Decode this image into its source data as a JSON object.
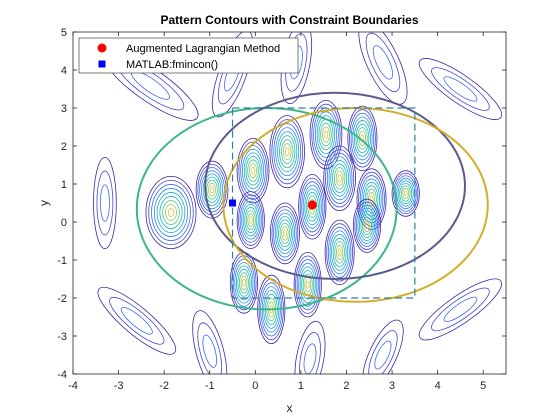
{
  "chart_data": {
    "type": "contour",
    "title": "Pattern Contours with Constraint Boundaries",
    "xlabel": "x",
    "ylabel": "y",
    "xlim": [
      -4,
      5.5
    ],
    "ylim": [
      -4,
      5
    ],
    "xticks": [
      -4,
      -3,
      -2,
      -1,
      0,
      1,
      2,
      3,
      4,
      5
    ],
    "yticks": [
      -4,
      -3,
      -2,
      -1,
      0,
      1,
      2,
      3,
      4,
      5
    ],
    "grid": false,
    "legend_location": "top-left",
    "contour_field": {
      "description_levels": 9,
      "colormap": "parula",
      "lobe_color_peak": "#e6c219",
      "lobe_color_low": "#3d3ad6",
      "lobes": [
        {
          "cx": -1.85,
          "cy": 0.25,
          "rx": 0.55,
          "ry": 0.95,
          "angle": 0
        },
        {
          "cx": -0.95,
          "cy": 0.85,
          "rx": 0.35,
          "ry": 0.75,
          "angle": 0
        },
        {
          "cx": -0.05,
          "cy": 1.35,
          "rx": 0.35,
          "ry": 0.85,
          "angle": 0
        },
        {
          "cx": 0.7,
          "cy": 1.85,
          "rx": 0.38,
          "ry": 0.95,
          "angle": 0
        },
        {
          "cx": 1.55,
          "cy": 2.3,
          "rx": 0.35,
          "ry": 0.9,
          "angle": 0
        },
        {
          "cx": 2.35,
          "cy": 2.2,
          "rx": 0.32,
          "ry": 0.85,
          "angle": 0
        },
        {
          "cx": 0.65,
          "cy": -0.3,
          "rx": 0.32,
          "ry": 0.8,
          "angle": 0
        },
        {
          "cx": 1.25,
          "cy": 0.4,
          "rx": 0.3,
          "ry": 0.85,
          "angle": 0
        },
        {
          "cx": 1.85,
          "cy": 1.15,
          "rx": 0.35,
          "ry": 0.85,
          "angle": 0
        },
        {
          "cx": 2.55,
          "cy": 0.6,
          "rx": 0.32,
          "ry": 0.8,
          "angle": 0
        },
        {
          "cx": 3.3,
          "cy": 0.75,
          "rx": 0.3,
          "ry": 0.6,
          "angle": 0
        },
        {
          "cx": 1.85,
          "cy": -0.8,
          "rx": 0.32,
          "ry": 0.85,
          "angle": 0
        },
        {
          "cx": 2.45,
          "cy": -0.1,
          "rx": 0.3,
          "ry": 0.7,
          "angle": 0
        },
        {
          "cx": 1.15,
          "cy": -1.65,
          "rx": 0.3,
          "ry": 0.85,
          "angle": 0
        },
        {
          "cx": 0.35,
          "cy": -2.3,
          "rx": 0.3,
          "ry": 0.9,
          "angle": 0
        },
        {
          "cx": -0.25,
          "cy": -1.6,
          "rx": 0.3,
          "ry": 0.8,
          "angle": 0
        },
        {
          "cx": -0.1,
          "cy": 0.05,
          "rx": 0.3,
          "ry": 0.75,
          "angle": 0
        }
      ],
      "outer_streaks": [
        {
          "cx": -2.3,
          "cy": 3.6,
          "rx": 0.35,
          "ry": 1.5,
          "angle": -55
        },
        {
          "cx": -0.5,
          "cy": 3.9,
          "rx": 0.3,
          "ry": 1.2,
          "angle": 20
        },
        {
          "cx": 0.9,
          "cy": 4.2,
          "rx": 0.3,
          "ry": 1.1,
          "angle": 10
        },
        {
          "cx": 2.8,
          "cy": 4.2,
          "rx": 0.35,
          "ry": 1.2,
          "angle": -25
        },
        {
          "cx": 4.5,
          "cy": 3.5,
          "rx": 0.3,
          "ry": 1.3,
          "angle": -55
        },
        {
          "cx": 4.5,
          "cy": -2.3,
          "rx": 0.3,
          "ry": 1.3,
          "angle": 55
        },
        {
          "cx": 2.8,
          "cy": -3.5,
          "rx": 0.3,
          "ry": 1.0,
          "angle": 25
        },
        {
          "cx": 1.2,
          "cy": -3.6,
          "rx": 0.3,
          "ry": 1.0,
          "angle": 10
        },
        {
          "cx": -1.0,
          "cy": -3.4,
          "rx": 0.3,
          "ry": 1.1,
          "angle": -15
        },
        {
          "cx": -2.6,
          "cy": -2.6,
          "rx": 0.3,
          "ry": 1.3,
          "angle": -50
        },
        {
          "cx": -3.3,
          "cy": 0.5,
          "rx": 0.25,
          "ry": 1.2,
          "angle": 0
        }
      ]
    },
    "constraints": [
      {
        "name": "ellipse-green",
        "kind": "ellipse",
        "cx": 0.25,
        "cy": 0.35,
        "rx": 2.85,
        "ry": 2.65,
        "color": "#3cb68a"
      },
      {
        "name": "ellipse-purple",
        "kind": "ellipse",
        "cx": 1.75,
        "cy": 0.95,
        "rx": 2.85,
        "ry": 2.45,
        "color": "#5d5a8c"
      },
      {
        "name": "ellipse-gold",
        "kind": "ellipse",
        "cx": 2.2,
        "cy": 0.45,
        "rx": 2.9,
        "ry": 2.55,
        "color": "#d2ae2a"
      },
      {
        "name": "box-dashed",
        "kind": "rectangle",
        "x0": -0.5,
        "x1": 3.5,
        "y0": -2,
        "y1": 3,
        "color": "#2f7fa8",
        "style": "dashed"
      }
    ],
    "series": [
      {
        "name": "Augmented Lagrangian Method",
        "x": [
          1.25
        ],
        "y": [
          0.45
        ],
        "marker": "circle",
        "color": "#ff0000"
      },
      {
        "name": "MATLAB:fmincon()",
        "x": [
          -0.5
        ],
        "y": [
          0.5
        ],
        "marker": "square",
        "color": "#0000ff"
      }
    ]
  }
}
